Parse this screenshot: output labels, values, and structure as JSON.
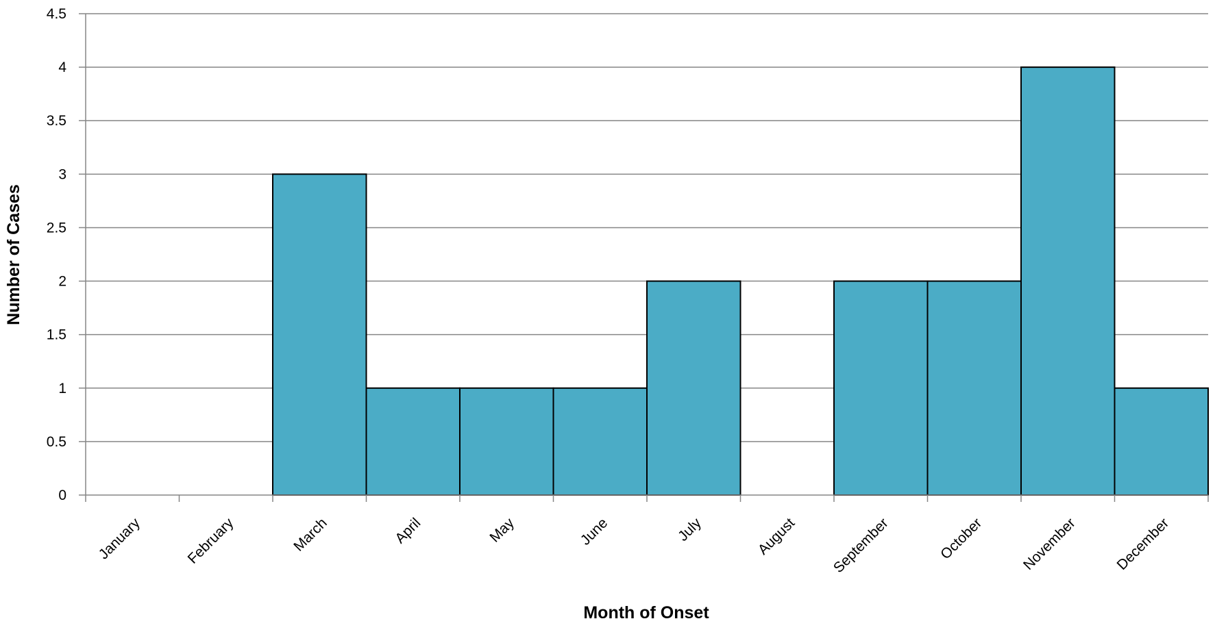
{
  "chart_data": {
    "type": "bar",
    "title": "",
    "xlabel": "Month of Onset",
    "ylabel": "Number of Cases",
    "categories": [
      "January",
      "February",
      "March",
      "April",
      "May",
      "June",
      "July",
      "August",
      "September",
      "October",
      "November",
      "December"
    ],
    "values": [
      0,
      0,
      3,
      1,
      1,
      1,
      2,
      0,
      2,
      2,
      4,
      1
    ],
    "ylim": [
      0,
      4.5
    ],
    "yticks": [
      "0",
      "0.5",
      "1",
      "1.5",
      "2",
      "2.5",
      "3",
      "3.5",
      "4",
      "4.5"
    ],
    "grid": true,
    "legend": "none",
    "bar_color": "#4BACC6",
    "bar_edge_color": "#000000",
    "grid_color": "#868686"
  }
}
